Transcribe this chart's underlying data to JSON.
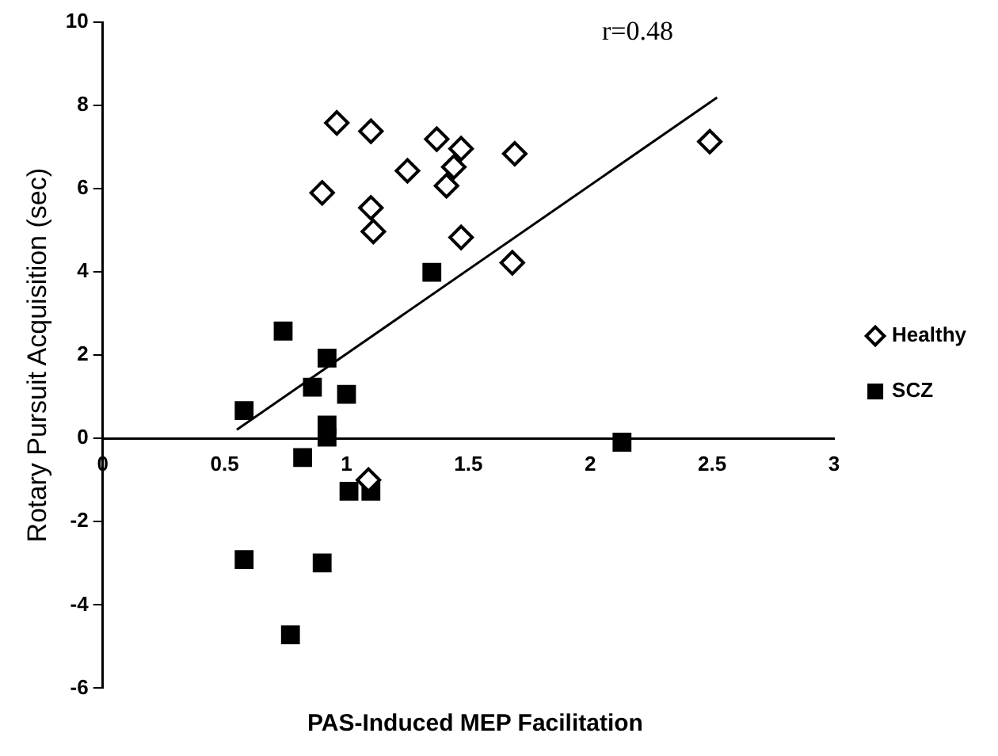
{
  "chart_data": {
    "type": "scatter",
    "xlabel": "PAS-Induced MEP Facilitation",
    "ylabel": "Rotary Pursuit Acquisition (sec)",
    "annotations": [
      "r=0.48"
    ],
    "xlim": [
      0,
      3
    ],
    "xticks": [
      0,
      0.5,
      1,
      1.5,
      2,
      2.5,
      3
    ],
    "ylim": [
      -6,
      10
    ],
    "yticks": [
      -6,
      -4,
      -2,
      0,
      2,
      4,
      6,
      8,
      10
    ],
    "grid": false,
    "legend": "right",
    "series": [
      {
        "name": "Healthy",
        "color": "#000000",
        "marker": "diamond",
        "x": [
          0.96,
          1.1,
          1.37,
          1.47,
          1.69,
          2.49,
          1.25,
          1.44,
          1.41,
          0.9,
          1.1,
          1.11,
          1.47,
          1.68,
          1.09
        ],
        "values": [
          7.58,
          7.38,
          7.19,
          6.96,
          6.84,
          7.13,
          6.43,
          6.52,
          6.07,
          5.9,
          5.54,
          4.97,
          4.83,
          4.22,
          -1.0
        ]
      },
      {
        "name": "SCZ",
        "color": "#000000",
        "marker": "square",
        "x": [
          1.35,
          0.74,
          0.92,
          0.86,
          1.0,
          0.58,
          0.92,
          0.92,
          0.82,
          2.13,
          1.01,
          1.1,
          0.58,
          0.9,
          0.77
        ],
        "values": [
          3.99,
          2.58,
          1.93,
          1.23,
          1.06,
          0.67,
          0.32,
          0.03,
          -0.46,
          -0.09,
          -1.27,
          -1.27,
          -2.91,
          -2.99,
          -4.72
        ]
      },
      {
        "type": "line",
        "color": "#000000",
        "marker": "none",
        "x": [
          0.55,
          2.52
        ],
        "values": [
          0.21,
          8.19
        ]
      }
    ]
  }
}
